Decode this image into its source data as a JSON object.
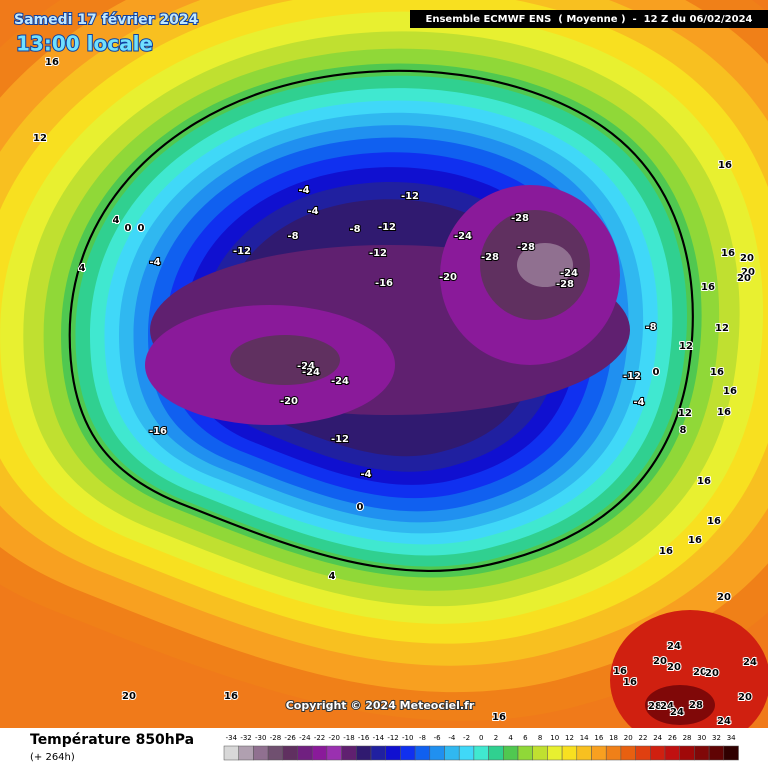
{
  "header": {
    "date": "Samedi 17 février 2024",
    "time": "13:00 locale",
    "model": "Ensemble ECMWF ENS  ( Moyenne )  -  12 Z du 06/02/2024"
  },
  "copyright": "Copyright © 2024 Meteociel.fr",
  "legend": {
    "title": "Température 850hPa",
    "subtitle": "(+ 264h)",
    "ticks": [
      -34,
      -32,
      -30,
      -28,
      -26,
      -24,
      -22,
      -20,
      -18,
      -16,
      -14,
      -12,
      -10,
      -8,
      -6,
      -4,
      -2,
      0,
      2,
      4,
      6,
      8,
      10,
      12,
      14,
      16,
      18,
      20,
      22,
      24,
      26,
      28,
      30,
      32,
      34
    ],
    "colors": [
      "#d8d8d8",
      "#b0a0b0",
      "#907090",
      "#705070",
      "#603060",
      "#702080",
      "#8a1a9a",
      "#9a30b0",
      "#602070",
      "#301a70",
      "#2020a0",
      "#1010d0",
      "#1030f0",
      "#1060f0",
      "#2090f0",
      "#30b8f0",
      "#40d8f8",
      "#40e8d0",
      "#30d090",
      "#50c850",
      "#90d838",
      "#c0e030",
      "#e8f030",
      "#f8e020",
      "#f8c020",
      "#f8a020",
      "#f08018",
      "#e86010",
      "#e04010",
      "#d02010",
      "#c01010",
      "#a00808",
      "#800808",
      "#600404",
      "#300000"
    ]
  },
  "contour_labels": [
    16,
    12,
    16,
    16,
    20,
    20,
    20,
    16,
    12,
    12,
    16,
    16,
    12,
    16,
    8,
    16,
    16,
    16,
    16,
    20,
    24,
    20,
    20,
    20,
    20,
    24,
    20,
    24,
    28,
    24,
    24,
    28,
    16,
    16,
    16,
    20,
    16,
    4,
    0,
    -4,
    -12,
    -16,
    -20,
    -24,
    -24,
    -24,
    -16,
    -12,
    -12,
    -12,
    -8,
    -8,
    -12,
    -4,
    -4,
    -20,
    -24,
    -28,
    -28,
    -28,
    -24,
    -28,
    -8,
    -12,
    0,
    -4,
    4,
    0,
    0,
    -4,
    4
  ]
}
